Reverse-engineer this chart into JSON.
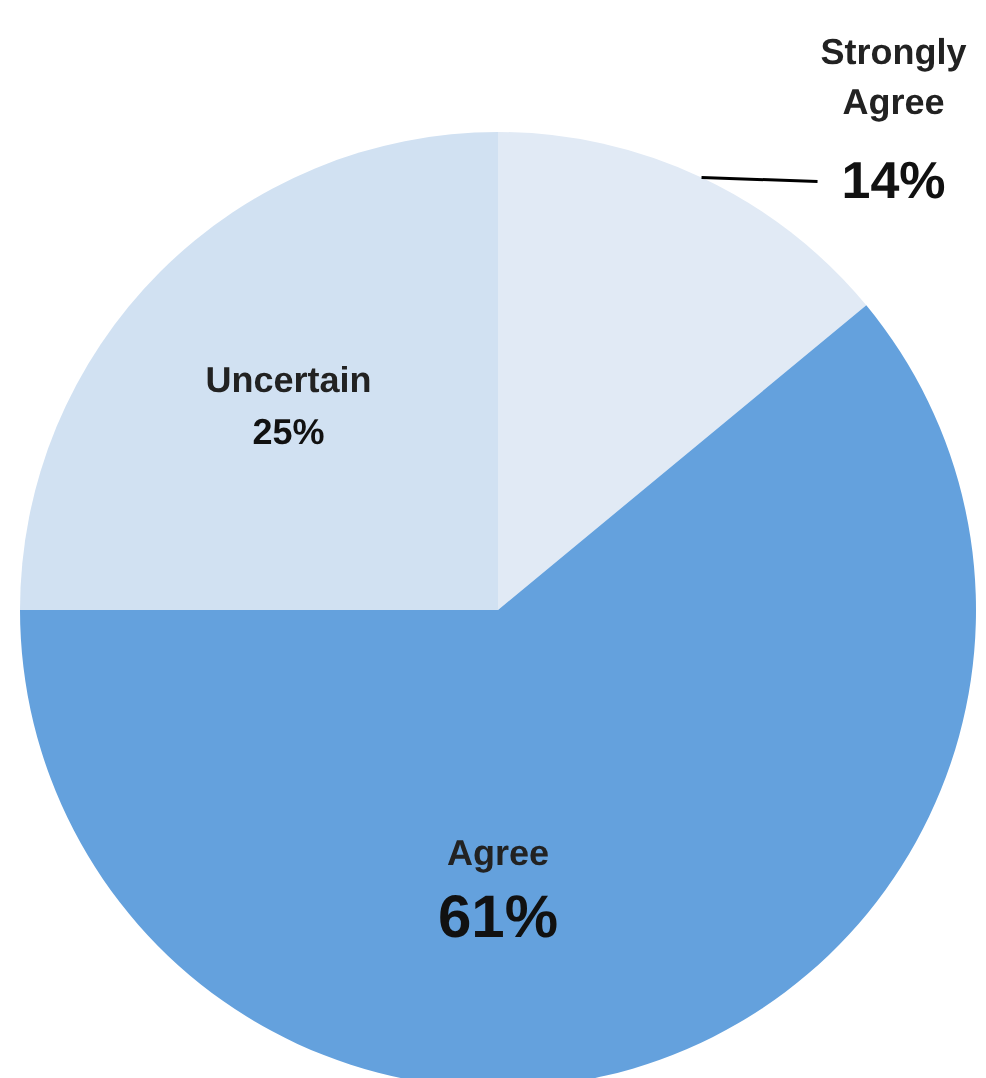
{
  "chart_data": {
    "type": "pie",
    "categories": [
      "Strongly Agree",
      "Agree",
      "Uncertain"
    ],
    "values": [
      14,
      61,
      25
    ],
    "colors": [
      "#e1eaf5",
      "#64a1dd",
      "#d1e1f2"
    ],
    "value_labels": [
      "14%",
      "61%",
      "25%"
    ]
  }
}
